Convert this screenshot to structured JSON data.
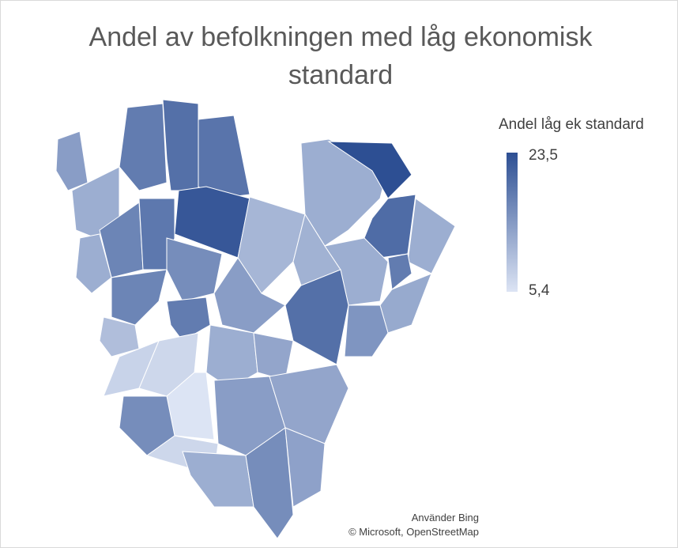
{
  "chart_data": {
    "type": "choropleth",
    "title": "Andel av befolkningen med låg ekonomisk standard",
    "legend_title": "Andel låg ek standard",
    "scale": {
      "min": {
        "value": 5.4,
        "label": "5,4"
      },
      "max": {
        "value": 23.5,
        "label": "23,5"
      }
    },
    "colors": [
      "#dce4f4",
      "#2d4f93"
    ],
    "values": [
      14,
      12,
      18,
      19.5,
      19,
      22.5,
      17,
      18.5,
      16,
      12,
      17,
      18,
      10,
      12,
      23.5,
      20,
      12,
      11,
      11.5,
      12,
      18,
      12.5,
      14,
      19.5,
      15,
      12,
      13,
      7,
      7.5,
      5.4,
      16,
      14,
      13,
      7,
      12,
      16,
      13.5
    ],
    "attribution": [
      "Använder Bing",
      "© Microsoft, OpenStreetMap"
    ]
  }
}
